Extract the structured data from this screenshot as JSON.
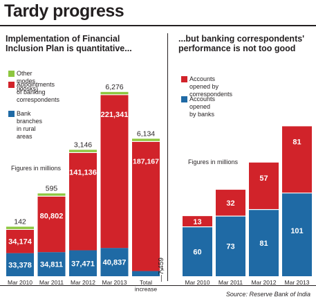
{
  "title": "Tardy progress",
  "source": "Source: Reserve Bank of India",
  "colors": {
    "green": "#8dc63f",
    "red": "#d1232a",
    "blue": "#1f6aa5",
    "ink": "#231f20",
    "white": "#ffffff"
  },
  "chart_data": [
    {
      "type": "bar",
      "stacked": true,
      "title": "Implementation of Financial\nInclusion Plan is quantitative...",
      "note": "Figures in millions",
      "categories": [
        "Mar 2010",
        "Mar 2011",
        "Mar 2012",
        "Mar 2013",
        "Total\nincrease"
      ],
      "series": [
        {
          "name": "Bank branches in rural areas",
          "color": "#1f6aa5",
          "values": [
            33378,
            34811,
            37471,
            40837,
            7459
          ]
        },
        {
          "name": "Appointments\nof banking\ncorrespondents",
          "color": "#d1232a",
          "values": [
            34174,
            80802,
            141136,
            221341,
            187167
          ]
        },
        {
          "name": "Other modes (kiosks)",
          "color": "#8dc63f"
        }
      ],
      "value_labels": {
        "blue": [
          "33,378",
          "34,811",
          "37,471",
          "40,837",
          "7,459"
        ],
        "red": [
          "34,174",
          "80,802",
          "141,136",
          "221,341",
          "187,167"
        ],
        "top": [
          "142",
          "595",
          "3,146",
          "6,276",
          "6,134"
        ]
      },
      "legend_order": [
        2,
        1,
        0
      ]
    },
    {
      "type": "bar",
      "stacked": true,
      "title": "...but banking correspondents'\nperformance is not too good",
      "note": "Figures in millions",
      "categories": [
        "Mar 2010",
        "Mar 2011",
        "Mar 2012",
        "Mar 2013"
      ],
      "series": [
        {
          "name": "Accounts opened by banks",
          "color": "#1f6aa5",
          "values": [
            60,
            73,
            81,
            101
          ]
        },
        {
          "name": "Accounts opened by\ncorrespondents",
          "color": "#d1232a",
          "values": [
            13,
            32,
            57,
            81
          ]
        }
      ],
      "value_labels": {
        "blue": [
          "60",
          "73",
          "81",
          "101"
        ],
        "red": [
          "13",
          "32",
          "57",
          "81"
        ]
      },
      "legend_order": [
        1,
        0
      ]
    }
  ]
}
